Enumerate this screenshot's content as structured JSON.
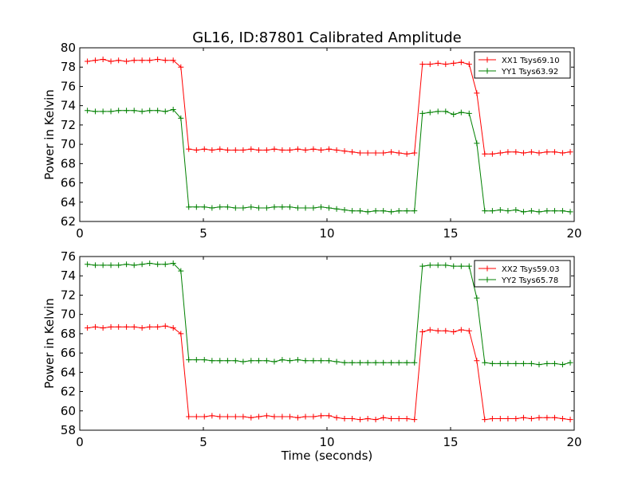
{
  "figure": {
    "title": "GL16, ID:87801 Calibrated Amplitude"
  },
  "chart_data": [
    {
      "type": "line",
      "title": "GL16, ID:87801 Calibrated Amplitude",
      "xlabel": "",
      "ylabel": "Power in Kelvin",
      "xlim": [
        0,
        20
      ],
      "ylim": [
        62,
        80
      ],
      "xticks": [
        "0",
        "5",
        "10",
        "15",
        "20"
      ],
      "yticks": [
        "62",
        "64",
        "66",
        "68",
        "70",
        "72",
        "74",
        "76",
        "78",
        "80"
      ],
      "grid": false,
      "legend_position": "top-right",
      "x": [
        0.31,
        0.63,
        0.94,
        1.26,
        1.57,
        1.89,
        2.2,
        2.52,
        2.83,
        3.15,
        3.46,
        3.78,
        4.09,
        4.41,
        4.72,
        5.04,
        5.35,
        5.67,
        5.98,
        6.3,
        6.61,
        6.93,
        7.24,
        7.56,
        7.87,
        8.19,
        8.5,
        8.82,
        9.13,
        9.45,
        9.76,
        10.08,
        10.39,
        10.71,
        11.02,
        11.34,
        11.65,
        11.97,
        12.28,
        12.6,
        12.91,
        13.23,
        13.54,
        13.86,
        14.17,
        14.49,
        14.8,
        15.12,
        15.43,
        15.75,
        16.06,
        16.38,
        16.69,
        17.01,
        17.32,
        17.64,
        17.95,
        18.27,
        18.58,
        18.9,
        19.21,
        19.53,
        19.84
      ],
      "series": [
        {
          "name": "XX1 Tsys69.10",
          "color": "#ff0000",
          "values": [
            78.6,
            78.7,
            78.8,
            78.6,
            78.7,
            78.6,
            78.7,
            78.7,
            78.7,
            78.8,
            78.7,
            78.7,
            78.0,
            69.5,
            69.4,
            69.5,
            69.4,
            69.5,
            69.4,
            69.4,
            69.4,
            69.5,
            69.4,
            69.4,
            69.5,
            69.4,
            69.4,
            69.5,
            69.4,
            69.5,
            69.4,
            69.5,
            69.4,
            69.3,
            69.2,
            69.1,
            69.1,
            69.1,
            69.1,
            69.2,
            69.1,
            69.0,
            69.1,
            78.3,
            78.3,
            78.4,
            78.3,
            78.4,
            78.5,
            78.3,
            75.3,
            69.0,
            69.0,
            69.1,
            69.2,
            69.2,
            69.1,
            69.2,
            69.1,
            69.2,
            69.2,
            69.1,
            69.2
          ]
        },
        {
          "name": "YY1 Tsys63.92",
          "color": "#008000",
          "values": [
            73.5,
            73.4,
            73.4,
            73.4,
            73.5,
            73.5,
            73.5,
            73.4,
            73.5,
            73.5,
            73.4,
            73.6,
            72.7,
            63.5,
            63.5,
            63.5,
            63.4,
            63.5,
            63.5,
            63.4,
            63.4,
            63.5,
            63.4,
            63.4,
            63.5,
            63.5,
            63.5,
            63.4,
            63.4,
            63.4,
            63.5,
            63.4,
            63.3,
            63.2,
            63.1,
            63.1,
            63.0,
            63.1,
            63.1,
            63.0,
            63.1,
            63.1,
            63.1,
            73.2,
            73.3,
            73.4,
            73.4,
            73.1,
            73.3,
            73.2,
            70.1,
            63.1,
            63.1,
            63.2,
            63.1,
            63.2,
            63.0,
            63.1,
            63.0,
            63.1,
            63.1,
            63.1,
            63.0
          ]
        }
      ]
    },
    {
      "type": "line",
      "title": "",
      "xlabel": "Time (seconds)",
      "ylabel": "Power in Kelvin",
      "xlim": [
        0,
        20
      ],
      "ylim": [
        58,
        76
      ],
      "xticks": [
        "0",
        "5",
        "10",
        "15",
        "20"
      ],
      "yticks": [
        "58",
        "60",
        "62",
        "64",
        "66",
        "68",
        "70",
        "72",
        "74",
        "76"
      ],
      "grid": false,
      "legend_position": "top-right",
      "x": [
        0.31,
        0.63,
        0.94,
        1.26,
        1.57,
        1.89,
        2.2,
        2.52,
        2.83,
        3.15,
        3.46,
        3.78,
        4.09,
        4.41,
        4.72,
        5.04,
        5.35,
        5.67,
        5.98,
        6.3,
        6.61,
        6.93,
        7.24,
        7.56,
        7.87,
        8.19,
        8.5,
        8.82,
        9.13,
        9.45,
        9.76,
        10.08,
        10.39,
        10.71,
        11.02,
        11.34,
        11.65,
        11.97,
        12.28,
        12.6,
        12.91,
        13.23,
        13.54,
        13.86,
        14.17,
        14.49,
        14.8,
        15.12,
        15.43,
        15.75,
        16.06,
        16.38,
        16.69,
        17.01,
        17.32,
        17.64,
        17.95,
        18.27,
        18.58,
        18.9,
        19.21,
        19.53,
        19.84
      ],
      "series": [
        {
          "name": "XX2 Tsys59.03",
          "color": "#ff0000",
          "values": [
            68.6,
            68.7,
            68.6,
            68.7,
            68.7,
            68.7,
            68.7,
            68.6,
            68.7,
            68.7,
            68.8,
            68.6,
            68.0,
            59.4,
            59.4,
            59.4,
            59.5,
            59.4,
            59.4,
            59.4,
            59.4,
            59.3,
            59.4,
            59.5,
            59.4,
            59.4,
            59.4,
            59.3,
            59.4,
            59.4,
            59.5,
            59.5,
            59.3,
            59.2,
            59.2,
            59.1,
            59.2,
            59.1,
            59.3,
            59.2,
            59.2,
            59.2,
            59.1,
            68.2,
            68.4,
            68.3,
            68.3,
            68.2,
            68.4,
            68.3,
            65.2,
            59.1,
            59.2,
            59.2,
            59.2,
            59.2,
            59.3,
            59.2,
            59.3,
            59.3,
            59.3,
            59.2,
            59.1
          ]
        },
        {
          "name": "YY2 Tsys65.78",
          "color": "#008000",
          "values": [
            75.2,
            75.1,
            75.1,
            75.1,
            75.1,
            75.2,
            75.1,
            75.2,
            75.3,
            75.2,
            75.2,
            75.3,
            74.5,
            65.3,
            65.3,
            65.3,
            65.2,
            65.2,
            65.2,
            65.2,
            65.1,
            65.2,
            65.2,
            65.2,
            65.1,
            65.3,
            65.2,
            65.3,
            65.2,
            65.2,
            65.2,
            65.2,
            65.1,
            65.0,
            65.0,
            65.0,
            65.0,
            65.0,
            65.0,
            65.0,
            65.0,
            65.0,
            65.0,
            75.0,
            75.1,
            75.1,
            75.1,
            75.0,
            75.0,
            75.0,
            71.7,
            65.0,
            64.9,
            64.9,
            64.9,
            64.9,
            64.9,
            64.9,
            64.8,
            64.9,
            64.9,
            64.8,
            65.0
          ]
        }
      ]
    }
  ]
}
